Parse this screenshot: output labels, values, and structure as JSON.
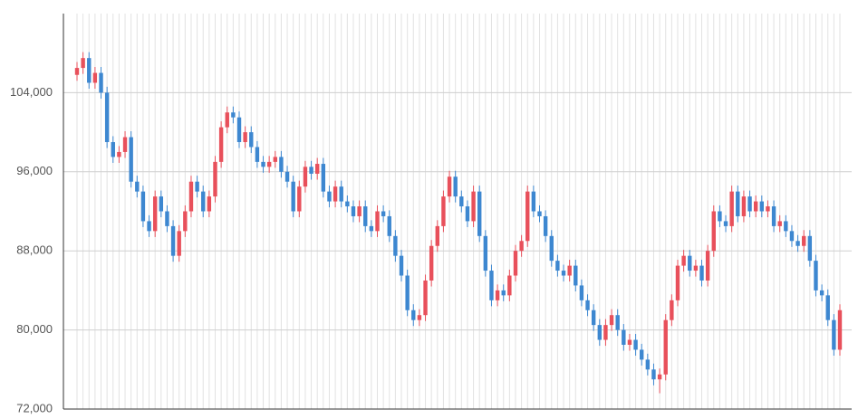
{
  "chart_data": {
    "type": "candlestick",
    "categories": [
      null,
      null,
      null,
      null,
      null,
      null,
      null,
      null,
      null,
      null,
      null,
      null,
      null,
      null,
      null,
      null,
      null,
      null,
      null,
      null,
      null,
      null,
      null,
      null,
      null,
      null,
      null,
      null,
      null,
      null,
      null,
      null,
      null,
      null,
      null,
      null,
      null,
      null,
      null,
      null,
      null,
      null,
      null,
      null,
      null,
      null,
      null,
      null,
      null,
      null,
      null,
      null,
      null,
      null,
      null,
      null,
      null,
      null,
      null,
      null,
      null,
      null,
      null,
      null,
      null,
      null,
      null,
      null,
      null,
      null,
      null,
      null,
      null,
      null,
      null,
      null,
      null,
      null,
      null,
      null,
      null,
      null,
      null,
      null,
      null,
      null,
      null,
      null,
      null,
      null,
      null,
      null,
      null,
      null,
      null,
      null,
      null,
      null,
      null,
      null,
      null,
      null,
      null,
      null,
      null,
      null,
      null,
      null,
      null,
      null,
      null,
      null,
      null,
      null,
      null,
      null,
      null,
      null,
      null,
      null,
      null,
      null,
      null,
      null,
      null,
      null,
      null,
      null
    ],
    "open": [
      105800,
      106500,
      107500,
      105000,
      106000,
      104000,
      99000,
      97500,
      98000,
      99500,
      95000,
      94000,
      91000,
      90000,
      93500,
      92000,
      90500,
      87500,
      90000,
      92000,
      95000,
      94000,
      92000,
      93500,
      97000,
      100500,
      102000,
      101500,
      99000,
      100000,
      98500,
      97000,
      96500,
      97000,
      97500,
      96000,
      95000,
      92000,
      94500,
      96500,
      95800,
      96800,
      94000,
      93000,
      94500,
      93000,
      92500,
      91500,
      92500,
      90500,
      90000,
      92000,
      91500,
      89500,
      87500,
      85500,
      82000,
      81000,
      81500,
      85000,
      88500,
      90500,
      93500,
      95500,
      93500,
      92500,
      91000,
      94000,
      89500,
      86000,
      83000,
      84000,
      83500,
      85500,
      88000,
      89000,
      94000,
      92000,
      91500,
      89500,
      87000,
      86000,
      85500,
      86500,
      84500,
      83000,
      82000,
      80500,
      79000,
      80500,
      81500,
      80000,
      78500,
      79000,
      78000,
      77000,
      76000,
      75000,
      75500,
      81000,
      83000,
      86500,
      87500,
      86000,
      86500,
      85000,
      88000,
      92000,
      91000,
      90500,
      94000,
      91500,
      93500,
      92000,
      93000,
      92000,
      92500,
      90500,
      91000,
      90000,
      89000,
      88500,
      89500,
      87000,
      84000,
      83500,
      81000,
      78000
    ],
    "high": [
      107100,
      108100,
      108100,
      106600,
      106600,
      104600,
      99600,
      98600,
      100100,
      100100,
      95600,
      94600,
      91600,
      94100,
      94100,
      92600,
      91100,
      90600,
      92600,
      95600,
      95600,
      94600,
      94100,
      97600,
      101100,
      102600,
      102600,
      102100,
      100600,
      100600,
      99100,
      97600,
      97600,
      98100,
      98100,
      96600,
      95600,
      95100,
      97100,
      97100,
      97400,
      97400,
      94600,
      95100,
      95100,
      93600,
      93100,
      93100,
      93100,
      91100,
      92600,
      92600,
      92100,
      90100,
      88100,
      86100,
      82600,
      82100,
      85600,
      89100,
      91100,
      94100,
      96100,
      96100,
      94100,
      93100,
      94600,
      94600,
      90100,
      86600,
      84600,
      84600,
      86100,
      88600,
      89600,
      94600,
      94600,
      92600,
      92100,
      90100,
      87600,
      86600,
      87100,
      87100,
      85100,
      83600,
      82600,
      81100,
      81100,
      82100,
      82100,
      80600,
      79600,
      79600,
      78600,
      77600,
      76600,
      76100,
      81600,
      83600,
      87100,
      88100,
      88100,
      87100,
      87100,
      88600,
      92600,
      92600,
      91600,
      94600,
      94600,
      94100,
      94100,
      93600,
      93600,
      93100,
      93100,
      91600,
      91600,
      90600,
      89600,
      90100,
      90100,
      87600,
      84600,
      84100,
      81600,
      82600
    ],
    "low": [
      105200,
      105900,
      104400,
      104400,
      103400,
      98400,
      96900,
      96900,
      97400,
      94400,
      93400,
      90400,
      89400,
      89400,
      91400,
      89900,
      86900,
      86900,
      89400,
      91400,
      93400,
      91400,
      91400,
      92900,
      96400,
      99900,
      100900,
      98400,
      98400,
      97900,
      96400,
      95900,
      95900,
      96400,
      95400,
      94400,
      91400,
      91400,
      93900,
      95200,
      95200,
      93400,
      92400,
      92400,
      92400,
      91900,
      90900,
      90900,
      89900,
      89400,
      89400,
      90900,
      88900,
      86900,
      84900,
      81400,
      80400,
      80400,
      80900,
      84400,
      87900,
      89900,
      92900,
      92900,
      91900,
      90400,
      90400,
      88900,
      85400,
      82400,
      82400,
      82900,
      82900,
      84900,
      87400,
      88400,
      91400,
      90900,
      88900,
      86400,
      85400,
      84900,
      84900,
      83900,
      82400,
      81400,
      79900,
      78400,
      78400,
      79900,
      79400,
      77900,
      77900,
      77400,
      76400,
      75400,
      74400,
      73600,
      74900,
      80400,
      82400,
      85900,
      85400,
      85400,
      84400,
      84400,
      87400,
      90400,
      89900,
      89900,
      90900,
      90900,
      91400,
      91400,
      91400,
      91400,
      89900,
      89900,
      89400,
      88400,
      87900,
      87900,
      86400,
      83400,
      82900,
      80400,
      77400,
      77400
    ],
    "close": [
      106500,
      107500,
      105000,
      106000,
      104000,
      99000,
      97500,
      98000,
      99500,
      95000,
      94000,
      91000,
      90000,
      93500,
      92000,
      90500,
      87500,
      90000,
      92000,
      95000,
      94000,
      92000,
      93500,
      97000,
      100500,
      102000,
      101500,
      99000,
      100000,
      98500,
      97000,
      96500,
      97000,
      97500,
      96000,
      95000,
      92000,
      94500,
      96500,
      95800,
      96800,
      94000,
      93000,
      94500,
      93000,
      92500,
      91500,
      92500,
      90500,
      90000,
      92000,
      91500,
      89500,
      87500,
      85500,
      82000,
      81000,
      81500,
      85000,
      88500,
      90500,
      93500,
      95500,
      93500,
      92500,
      91000,
      94000,
      89500,
      86000,
      83000,
      84000,
      83500,
      85500,
      88000,
      89000,
      94000,
      92000,
      91500,
      89500,
      87000,
      86000,
      85500,
      86500,
      84500,
      83000,
      82000,
      80500,
      79000,
      80500,
      81500,
      80000,
      78500,
      79000,
      78000,
      77000,
      76000,
      75000,
      75500,
      81000,
      83000,
      86500,
      87500,
      86000,
      86500,
      85000,
      88000,
      92000,
      91000,
      90500,
      94000,
      91500,
      93500,
      92000,
      93000,
      92000,
      92500,
      90500,
      91000,
      90000,
      89000,
      88500,
      89500,
      87000,
      84000,
      83500,
      81000,
      78000,
      82000
    ],
    "up_color": "#e8505b",
    "down_color": "#3d87d0",
    "ylim": [
      72000,
      112000
    ],
    "yticks": [
      {
        "value": 72000,
        "label": "72,000"
      },
      {
        "value": 80000,
        "label": "80,000"
      },
      {
        "value": 88000,
        "label": "88,000"
      },
      {
        "value": 96000,
        "label": "96,000"
      },
      {
        "value": 104000,
        "label": "104,000"
      }
    ],
    "grid": true
  }
}
